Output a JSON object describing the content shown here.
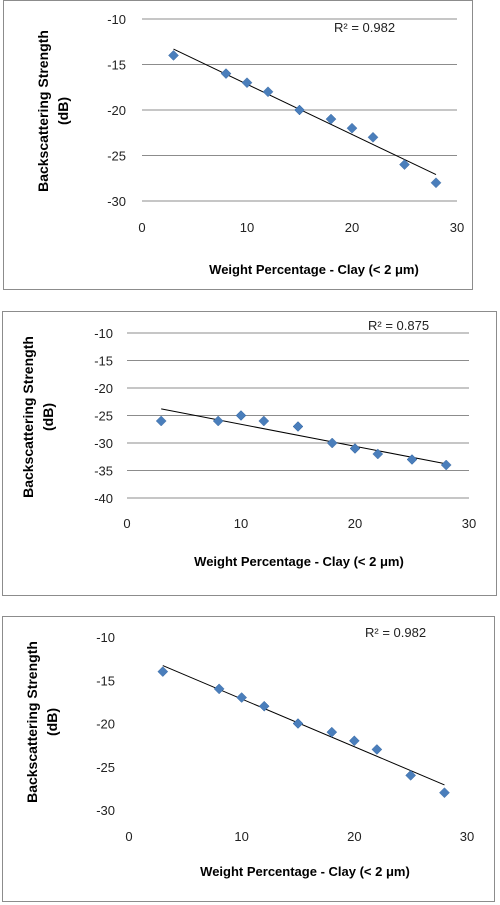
{
  "chart_data": [
    {
      "type": "scatter",
      "ylabel_line1": "Backscattering Strength",
      "ylabel_line2": "(dB)",
      "xlabel": "Weight Percentage - Clay (< 2 μm)",
      "annotation": "R² = 0.982",
      "xlim": [
        0,
        30
      ],
      "ylim": [
        -30,
        -10
      ],
      "xticks": [
        "0",
        "10",
        "20",
        "30"
      ],
      "yticks": [
        "-10",
        "-15",
        "-20",
        "-25",
        "-30"
      ],
      "grid": "horizontal",
      "points": [
        {
          "x": 3,
          "y": -14
        },
        {
          "x": 8,
          "y": -16
        },
        {
          "x": 10,
          "y": -17
        },
        {
          "x": 12,
          "y": -18
        },
        {
          "x": 15,
          "y": -20
        },
        {
          "x": 18,
          "y": -21
        },
        {
          "x": 20,
          "y": -22
        },
        {
          "x": 22,
          "y": -23
        },
        {
          "x": 25,
          "y": -26
        },
        {
          "x": 28,
          "y": -28
        }
      ],
      "trendline": {
        "x": [
          3,
          28
        ],
        "y": [
          -13.3,
          -27.1
        ]
      }
    },
    {
      "type": "scatter",
      "ylabel_line1": "Backscattering Strength",
      "ylabel_line2": "(dB)",
      "xlabel": "Weight Percentage - Clay (< 2 μm)",
      "annotation": "R² = 0.875",
      "xlim": [
        0,
        30
      ],
      "ylim": [
        -40,
        -10
      ],
      "xticks": [
        "0",
        "10",
        "20",
        "30"
      ],
      "yticks": [
        "-10",
        "-15",
        "-20",
        "-25",
        "-30",
        "-35",
        "-40"
      ],
      "grid": "horizontal",
      "points": [
        {
          "x": 3,
          "y": -26
        },
        {
          "x": 8,
          "y": -26
        },
        {
          "x": 10,
          "y": -25
        },
        {
          "x": 12,
          "y": -26
        },
        {
          "x": 15,
          "y": -27
        },
        {
          "x": 18,
          "y": -30
        },
        {
          "x": 20,
          "y": -31
        },
        {
          "x": 22,
          "y": -32
        },
        {
          "x": 25,
          "y": -33
        },
        {
          "x": 28,
          "y": -34
        }
      ],
      "trendline": {
        "x": [
          3,
          28
        ],
        "y": [
          -23.8,
          -33.8
        ]
      }
    },
    {
      "type": "scatter",
      "ylabel_line1": "Backscattering Strength",
      "ylabel_line2": "(dB)",
      "xlabel": "Weight Percentage - Clay (< 2 μm)",
      "annotation": "R² = 0.982",
      "xlim": [
        0,
        30
      ],
      "ylim": [
        -30,
        -10
      ],
      "xticks": [
        "0",
        "10",
        "20",
        "30"
      ],
      "yticks": [
        "-10",
        "-15",
        "-20",
        "-25",
        "-30"
      ],
      "grid": "none",
      "points": [
        {
          "x": 3,
          "y": -14
        },
        {
          "x": 8,
          "y": -16
        },
        {
          "x": 10,
          "y": -17
        },
        {
          "x": 12,
          "y": -18
        },
        {
          "x": 15,
          "y": -20
        },
        {
          "x": 18,
          "y": -21
        },
        {
          "x": 20,
          "y": -22
        },
        {
          "x": 22,
          "y": -23
        },
        {
          "x": 25,
          "y": -26
        },
        {
          "x": 28,
          "y": -28
        }
      ],
      "trendline": {
        "x": [
          3,
          28
        ],
        "y": [
          -13.3,
          -27.1
        ]
      }
    }
  ],
  "colors": {
    "marker": "#4a7ebb",
    "grid": "#8c8c8c",
    "trend": "#000000",
    "border": "#8c8c8c"
  }
}
